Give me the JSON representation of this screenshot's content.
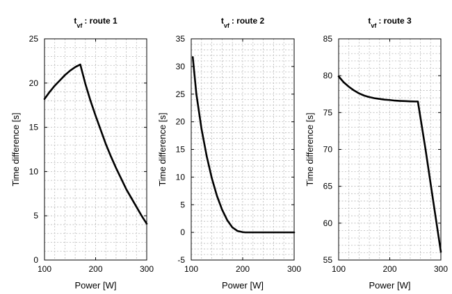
{
  "figure": {
    "background": "#ffffff",
    "line_color": "#000000",
    "grid_color": "#b8b8b8"
  },
  "chart_data": [
    {
      "type": "line",
      "title": "t vf : route 1",
      "title_main": "t",
      "title_sub": "vf",
      "title_rest": ": route 1",
      "xlabel": "Power [W]",
      "ylabel": "Time difference [s]",
      "xlim": [
        100,
        300
      ],
      "ylim": [
        0,
        25
      ],
      "xticks": [
        100,
        200,
        300
      ],
      "yticks": [
        0,
        5,
        10,
        15,
        20,
        25
      ],
      "xticklabels": [
        "100",
        "200",
        "300"
      ],
      "yticklabels": [
        "0",
        "5",
        "10",
        "15",
        "20",
        "25"
      ],
      "grid": true,
      "minor_grid": true,
      "series": [
        {
          "x": [
            100,
            110,
            120,
            130,
            140,
            150,
            160,
            170,
            180,
            190,
            200,
            210,
            220,
            230,
            240,
            250,
            260,
            270,
            280,
            290,
            300
          ],
          "y": [
            18.2,
            19.0,
            19.7,
            20.3,
            20.9,
            21.4,
            21.8,
            22.1,
            19.9,
            18.0,
            16.3,
            14.7,
            13.1,
            11.7,
            10.4,
            9.2,
            8.0,
            7.0,
            6.0,
            5.0,
            4.1
          ]
        }
      ]
    },
    {
      "type": "line",
      "title": "t vf : route 2",
      "title_main": "t",
      "title_sub": "vf",
      "title_rest": ": route 2",
      "xlabel": "Power [W]",
      "ylabel": "Time difference [s]",
      "xlim": [
        100,
        300
      ],
      "ylim": [
        -5,
        35
      ],
      "xticks": [
        100,
        200,
        300
      ],
      "yticks": [
        -5,
        0,
        5,
        10,
        15,
        20,
        25,
        30,
        35
      ],
      "xticklabels": [
        "100",
        "200",
        "300"
      ],
      "yticklabels": [
        "-5",
        "0",
        "5",
        "10",
        "15",
        "20",
        "25",
        "30",
        "35"
      ],
      "grid": true,
      "minor_grid": true,
      "series": [
        {
          "x": [
            103,
            110,
            120,
            130,
            140,
            150,
            160,
            170,
            180,
            190,
            200,
            205,
            210,
            220,
            240,
            260,
            280,
            300
          ],
          "y": [
            31.7,
            25.0,
            18.7,
            13.8,
            9.8,
            6.6,
            4.1,
            2.2,
            0.9,
            0.25,
            0.05,
            0.0,
            0.0,
            0.0,
            0.0,
            0.0,
            0.0,
            0.0
          ]
        }
      ]
    },
    {
      "type": "line",
      "title": "t vf : route 3",
      "title_main": "t",
      "title_sub": "vf",
      "title_rest": ": route 3",
      "xlabel": "Power [W]",
      "ylabel": "Time difference [s]",
      "xlim": [
        100,
        300
      ],
      "ylim": [
        55,
        85
      ],
      "xticks": [
        100,
        200,
        300
      ],
      "yticks": [
        55,
        60,
        65,
        70,
        75,
        80,
        85
      ],
      "xticklabels": [
        "100",
        "200",
        "300"
      ],
      "yticklabels": [
        "55",
        "60",
        "65",
        "70",
        "75",
        "80",
        "85"
      ],
      "grid": true,
      "minor_grid": true,
      "series": [
        {
          "x": [
            100,
            110,
            120,
            130,
            140,
            150,
            160,
            170,
            180,
            190,
            200,
            210,
            220,
            230,
            240,
            250,
            255,
            270,
            285,
            300
          ],
          "y": [
            79.9,
            79.1,
            78.5,
            78.0,
            77.6,
            77.3,
            77.1,
            76.95,
            76.85,
            76.75,
            76.7,
            76.62,
            76.58,
            76.55,
            76.52,
            76.5,
            76.5,
            70.0,
            63.0,
            56.1
          ]
        }
      ]
    }
  ]
}
